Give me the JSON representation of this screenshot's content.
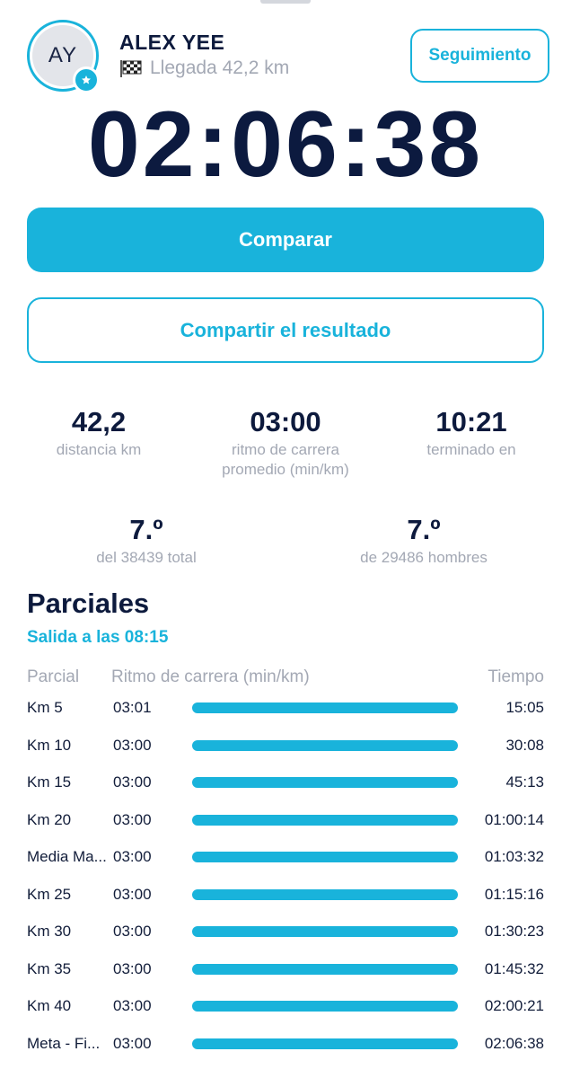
{
  "athlete": {
    "initials": "AY",
    "name": "ALEX YEE",
    "finish_label": "Llegada 42,2 km"
  },
  "actions": {
    "follow_label": "Seguimiento",
    "compare_label": "Comparar",
    "share_label": "Compartir el resultado"
  },
  "result": {
    "finish_time": "02:06:38"
  },
  "stats": {
    "distance": {
      "value": "42,2",
      "label": "distancia km"
    },
    "avg_pace": {
      "value": "03:00",
      "label_line1": "ritmo de carrera",
      "label_line2": "promedio (min/km)"
    },
    "finished_at": {
      "value": "10:21",
      "label": "terminado en"
    },
    "overall_rank": {
      "value": "7.º",
      "label": "del 38439 total"
    },
    "gender_rank": {
      "value": "7.º",
      "label": "de 29486 hombres"
    }
  },
  "splits": {
    "title": "Parciales",
    "start_label": "Salida a las 08:15",
    "headers": {
      "split": "Parcial",
      "pace": "Ritmo de carrera (min/km)",
      "time": "Tiempo"
    },
    "rows": [
      {
        "name": "Km 5",
        "pace": "03:01",
        "time": "15:05",
        "bar_fraction": 1.0
      },
      {
        "name": "Km 10",
        "pace": "03:00",
        "time": "30:08",
        "bar_fraction": 1.0
      },
      {
        "name": "Km 15",
        "pace": "03:00",
        "time": "45:13",
        "bar_fraction": 1.0
      },
      {
        "name": "Km 20",
        "pace": "03:00",
        "time": "01:00:14",
        "bar_fraction": 1.0
      },
      {
        "name": "Media Ma...",
        "pace": "03:00",
        "time": "01:03:32",
        "bar_fraction": 1.0
      },
      {
        "name": "Km 25",
        "pace": "03:00",
        "time": "01:15:16",
        "bar_fraction": 1.0
      },
      {
        "name": "Km 30",
        "pace": "03:00",
        "time": "01:30:23",
        "bar_fraction": 1.0
      },
      {
        "name": "Km 35",
        "pace": "03:00",
        "time": "01:45:32",
        "bar_fraction": 1.0
      },
      {
        "name": "Km 40",
        "pace": "03:00",
        "time": "02:00:21",
        "bar_fraction": 1.0
      },
      {
        "name": "Meta - Fi...",
        "pace": "03:00",
        "time": "02:06:38",
        "bar_fraction": 1.0
      }
    ]
  },
  "colors": {
    "accent": "#19b3db",
    "text_primary": "#0d1a3d",
    "text_muted": "#a3a8b4"
  },
  "icons": {
    "flag": "checkered-flag-icon",
    "badge": "star-icon"
  }
}
